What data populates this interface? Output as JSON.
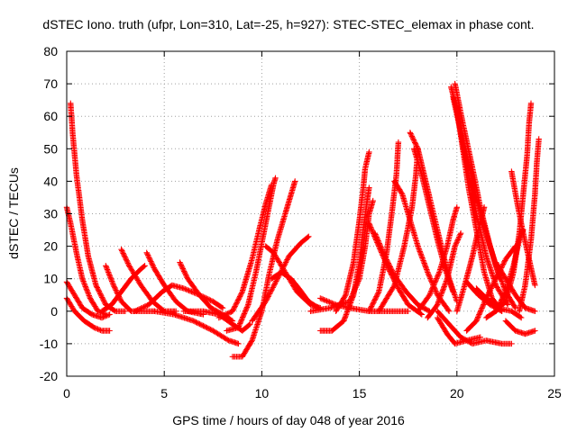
{
  "chart_data": {
    "type": "scatter",
    "title": "dSTEC Iono. truth (ufpr, Lon=310, Lat=-25, h=927): STEC-STEC_elemax in phase cont.",
    "xlabel": "GPS time / hours of day 048 of year 2016",
    "ylabel": "dSTEC  / TECUs",
    "xlim": [
      0,
      25
    ],
    "ylim": [
      -20,
      80
    ],
    "xticks": [
      0,
      5,
      10,
      15,
      20,
      25
    ],
    "yticks": [
      -20,
      -10,
      0,
      10,
      20,
      30,
      40,
      50,
      60,
      70,
      80
    ],
    "grid": true,
    "marker": "+",
    "color": "#ff0000",
    "series": [
      {
        "points": [
          [
            0.2,
            64
          ],
          [
            0.3,
            55
          ],
          [
            0.5,
            42
          ],
          [
            0.8,
            28
          ],
          [
            1.1,
            17
          ],
          [
            1.5,
            8
          ],
          [
            2.0,
            2
          ],
          [
            2.5,
            0
          ],
          [
            3.0,
            0
          ]
        ]
      },
      {
        "points": [
          [
            0.0,
            32
          ],
          [
            0.2,
            27
          ],
          [
            0.5,
            18
          ],
          [
            0.8,
            10
          ],
          [
            1.2,
            4
          ],
          [
            1.6,
            0
          ],
          [
            2.0,
            -1
          ]
        ]
      },
      {
        "points": [
          [
            0.0,
            9
          ],
          [
            0.4,
            5
          ],
          [
            0.8,
            1
          ],
          [
            1.3,
            -1
          ],
          [
            1.8,
            -2
          ],
          [
            2.2,
            -1
          ]
        ]
      },
      {
        "points": [
          [
            0.0,
            4
          ],
          [
            0.4,
            0
          ],
          [
            0.9,
            -3
          ],
          [
            1.4,
            -5
          ],
          [
            1.8,
            -6
          ],
          [
            2.2,
            -6
          ]
        ]
      },
      {
        "points": [
          [
            2.0,
            14
          ],
          [
            2.4,
            8
          ],
          [
            2.8,
            3
          ],
          [
            3.3,
            0
          ],
          [
            3.8,
            0
          ],
          [
            4.5,
            0
          ]
        ]
      },
      {
        "points": [
          [
            2.8,
            19
          ],
          [
            3.2,
            14
          ],
          [
            3.8,
            8
          ],
          [
            4.4,
            3
          ],
          [
            5.0,
            0
          ],
          [
            5.6,
            0
          ]
        ]
      },
      {
        "points": [
          [
            1.8,
            0
          ],
          [
            2.3,
            2
          ],
          [
            2.8,
            6
          ],
          [
            3.3,
            10
          ],
          [
            3.8,
            13
          ],
          [
            4.0,
            14
          ]
        ]
      },
      {
        "points": [
          [
            4.1,
            18
          ],
          [
            4.5,
            13
          ],
          [
            5.0,
            8
          ],
          [
            5.6,
            3
          ],
          [
            6.2,
            0
          ],
          [
            7.0,
            -1
          ]
        ]
      },
      {
        "points": [
          [
            5.8,
            15
          ],
          [
            6.2,
            10
          ],
          [
            6.8,
            5
          ],
          [
            7.4,
            1
          ],
          [
            8.0,
            -1
          ],
          [
            8.5,
            -3
          ]
        ]
      },
      {
        "points": [
          [
            3.5,
            0
          ],
          [
            4.2,
            2
          ],
          [
            4.9,
            6
          ],
          [
            5.4,
            8
          ],
          [
            6.0,
            7
          ],
          [
            6.8,
            5
          ],
          [
            7.5,
            3
          ],
          [
            8.0,
            1
          ]
        ]
      },
      {
        "points": [
          [
            4.5,
            0
          ],
          [
            5.5,
            -1
          ],
          [
            6.5,
            -3
          ],
          [
            7.5,
            -6
          ],
          [
            8.3,
            -9
          ],
          [
            8.8,
            -10
          ]
        ]
      },
      {
        "points": [
          [
            6.0,
            0
          ],
          [
            7.0,
            0
          ],
          [
            7.8,
            -1
          ],
          [
            8.5,
            -4
          ],
          [
            9.0,
            -6
          ],
          [
            9.4,
            -4
          ]
        ]
      },
      {
        "points": [
          [
            8.5,
            -14
          ],
          [
            9.0,
            -14
          ],
          [
            9.5,
            -9
          ],
          [
            10.0,
            0
          ],
          [
            10.4,
            12
          ],
          [
            10.8,
            22
          ],
          [
            11.2,
            30
          ],
          [
            11.5,
            36
          ],
          [
            11.7,
            40
          ]
        ]
      },
      {
        "points": [
          [
            8.2,
            -6
          ],
          [
            8.8,
            -5
          ],
          [
            9.3,
            2
          ],
          [
            9.7,
            12
          ],
          [
            10.1,
            24
          ],
          [
            10.4,
            33
          ],
          [
            10.6,
            39
          ],
          [
            10.7,
            41
          ]
        ]
      },
      {
        "points": [
          [
            7.8,
            -2
          ],
          [
            8.5,
            0
          ],
          [
            9.0,
            6
          ],
          [
            9.5,
            16
          ],
          [
            9.9,
            26
          ],
          [
            10.2,
            33
          ],
          [
            10.5,
            39
          ]
        ]
      },
      {
        "points": [
          [
            9.5,
            -3
          ],
          [
            10.2,
            3
          ],
          [
            10.8,
            10
          ],
          [
            11.4,
            17
          ],
          [
            12.0,
            21
          ],
          [
            12.4,
            23
          ]
        ]
      },
      {
        "points": [
          [
            10.5,
            10
          ],
          [
            11.0,
            12
          ],
          [
            11.5,
            10
          ],
          [
            11.9,
            7
          ],
          [
            12.4,
            3
          ],
          [
            12.9,
            1
          ]
        ]
      },
      {
        "points": [
          [
            10.2,
            20
          ],
          [
            10.6,
            18
          ],
          [
            11.2,
            12
          ],
          [
            11.8,
            6
          ],
          [
            12.5,
            2
          ],
          [
            13.0,
            1
          ]
        ]
      },
      {
        "points": [
          [
            12.5,
            0
          ],
          [
            13.5,
            1
          ],
          [
            14.5,
            3
          ],
          [
            15.0,
            10
          ],
          [
            15.3,
            20
          ],
          [
            15.5,
            30
          ],
          [
            15.7,
            34
          ]
        ]
      },
      {
        "points": [
          [
            13.0,
            -6
          ],
          [
            13.6,
            -6
          ],
          [
            14.2,
            -3
          ],
          [
            14.7,
            5
          ],
          [
            15.0,
            15
          ],
          [
            15.2,
            25
          ],
          [
            15.4,
            34
          ],
          [
            15.5,
            38
          ]
        ]
      },
      {
        "points": [
          [
            13.8,
            0
          ],
          [
            14.3,
            5
          ],
          [
            14.7,
            15
          ],
          [
            15.0,
            28
          ],
          [
            15.2,
            38
          ],
          [
            15.3,
            44
          ],
          [
            15.5,
            49
          ]
        ]
      },
      {
        "points": [
          [
            13.0,
            4
          ],
          [
            13.8,
            2
          ],
          [
            14.5,
            1
          ],
          [
            15.5,
            0
          ],
          [
            16.5,
            0
          ],
          [
            17.5,
            0
          ]
        ]
      },
      {
        "points": [
          [
            15.5,
            27
          ],
          [
            16.0,
            20
          ],
          [
            16.5,
            13
          ],
          [
            17.0,
            7
          ],
          [
            17.5,
            2
          ],
          [
            18.2,
            -1
          ]
        ]
      },
      {
        "points": [
          [
            15.8,
            24
          ],
          [
            16.3,
            17
          ],
          [
            16.8,
            11
          ],
          [
            17.4,
            6
          ],
          [
            18.0,
            2
          ],
          [
            18.6,
            0
          ]
        ]
      },
      {
        "points": [
          [
            15.5,
            0
          ],
          [
            16.0,
            6
          ],
          [
            16.4,
            18
          ],
          [
            16.7,
            32
          ],
          [
            16.9,
            42
          ],
          [
            17.0,
            52
          ]
        ]
      },
      {
        "points": [
          [
            16.0,
            0
          ],
          [
            16.8,
            8
          ],
          [
            17.3,
            20
          ],
          [
            17.7,
            32
          ],
          [
            17.9,
            42
          ],
          [
            18.0,
            50
          ]
        ]
      },
      {
        "points": [
          [
            16.8,
            40
          ],
          [
            17.2,
            36
          ],
          [
            17.6,
            28
          ],
          [
            18.0,
            20
          ],
          [
            18.5,
            12
          ],
          [
            19.0,
            5
          ],
          [
            19.6,
            0
          ]
        ]
      },
      {
        "points": [
          [
            17.6,
            55
          ],
          [
            18.0,
            50
          ],
          [
            18.4,
            40
          ],
          [
            18.8,
            30
          ],
          [
            19.2,
            20
          ],
          [
            19.6,
            10
          ],
          [
            20.0,
            3
          ]
        ]
      },
      {
        "points": [
          [
            17.8,
            50
          ],
          [
            18.2,
            42
          ],
          [
            18.6,
            32
          ],
          [
            19.0,
            22
          ],
          [
            19.4,
            13
          ],
          [
            19.8,
            6
          ]
        ]
      },
      {
        "points": [
          [
            18.0,
            0
          ],
          [
            18.6,
            5
          ],
          [
            19.1,
            12
          ],
          [
            19.5,
            20
          ],
          [
            19.8,
            28
          ],
          [
            20.0,
            32
          ]
        ]
      },
      {
        "points": [
          [
            18.5,
            -2
          ],
          [
            19.0,
            2
          ],
          [
            19.5,
            10
          ],
          [
            19.9,
            20
          ],
          [
            20.2,
            24
          ]
        ]
      },
      {
        "points": [
          [
            19.0,
            0
          ],
          [
            19.6,
            -4
          ],
          [
            20.2,
            -8
          ],
          [
            20.8,
            -10
          ],
          [
            21.5,
            -9
          ],
          [
            22.3,
            -10
          ],
          [
            22.8,
            -10
          ]
        ]
      },
      {
        "points": [
          [
            19.0,
            -2
          ],
          [
            19.5,
            -7
          ],
          [
            19.9,
            -10
          ],
          [
            20.5,
            -9
          ],
          [
            21.2,
            -8
          ]
        ]
      },
      {
        "points": [
          [
            19.7,
            69
          ],
          [
            20.0,
            62
          ],
          [
            20.3,
            50
          ],
          [
            20.6,
            38
          ],
          [
            21.0,
            25
          ],
          [
            21.4,
            12
          ],
          [
            21.8,
            4
          ],
          [
            22.3,
            0
          ]
        ]
      },
      {
        "points": [
          [
            19.8,
            66
          ],
          [
            20.2,
            55
          ],
          [
            20.6,
            42
          ],
          [
            21.0,
            30
          ],
          [
            21.5,
            17
          ],
          [
            22.0,
            8
          ],
          [
            22.6,
            2
          ]
        ]
      },
      {
        "points": [
          [
            19.9,
            70
          ],
          [
            20.3,
            58
          ],
          [
            20.8,
            44
          ],
          [
            21.2,
            32
          ],
          [
            21.7,
            20
          ],
          [
            22.2,
            10
          ]
        ]
      },
      {
        "points": [
          [
            20.2,
            55
          ],
          [
            20.6,
            45
          ],
          [
            21.0,
            35
          ],
          [
            21.5,
            24
          ],
          [
            22.0,
            14
          ],
          [
            22.5,
            6
          ],
          [
            23.0,
            1
          ]
        ]
      },
      {
        "points": [
          [
            20.0,
            0
          ],
          [
            20.4,
            8
          ],
          [
            20.8,
            17
          ],
          [
            21.1,
            25
          ],
          [
            21.4,
            32
          ]
        ]
      },
      {
        "points": [
          [
            20.5,
            -6
          ],
          [
            21.0,
            -3
          ],
          [
            21.5,
            4
          ],
          [
            22.0,
            10
          ],
          [
            22.5,
            16
          ],
          [
            23.0,
            20
          ]
        ]
      },
      {
        "points": [
          [
            21.5,
            -2
          ],
          [
            22.0,
            0
          ],
          [
            22.5,
            6
          ],
          [
            22.9,
            14
          ],
          [
            23.2,
            22
          ],
          [
            23.4,
            25
          ]
        ]
      },
      {
        "points": [
          [
            22.0,
            0
          ],
          [
            22.5,
            3
          ],
          [
            22.9,
            12
          ],
          [
            23.2,
            24
          ],
          [
            23.4,
            36
          ],
          [
            23.6,
            48
          ],
          [
            23.7,
            58
          ],
          [
            23.8,
            64
          ]
        ]
      },
      {
        "points": [
          [
            22.8,
            43
          ],
          [
            23.1,
            33
          ],
          [
            23.4,
            24
          ],
          [
            23.7,
            16
          ],
          [
            24.0,
            8
          ]
        ]
      },
      {
        "points": [
          [
            23.2,
            0
          ],
          [
            23.5,
            8
          ],
          [
            23.8,
            22
          ],
          [
            24.0,
            36
          ],
          [
            24.1,
            46
          ],
          [
            24.2,
            53
          ]
        ]
      },
      {
        "points": [
          [
            21.0,
            7
          ],
          [
            21.5,
            4
          ],
          [
            22.1,
            1
          ],
          [
            22.8,
            0
          ],
          [
            23.3,
            -2
          ]
        ]
      },
      {
        "points": [
          [
            20.5,
            9
          ],
          [
            21.1,
            5
          ],
          [
            21.7,
            2
          ],
          [
            22.3,
            0
          ]
        ]
      },
      {
        "points": [
          [
            22.5,
            -3
          ],
          [
            23.0,
            -6
          ],
          [
            23.5,
            -7
          ],
          [
            24.0,
            -6
          ]
        ]
      },
      {
        "points": [
          [
            22.0,
            15
          ],
          [
            22.5,
            10
          ],
          [
            23.0,
            5
          ],
          [
            23.5,
            1
          ],
          [
            24.0,
            0
          ]
        ]
      }
    ]
  }
}
